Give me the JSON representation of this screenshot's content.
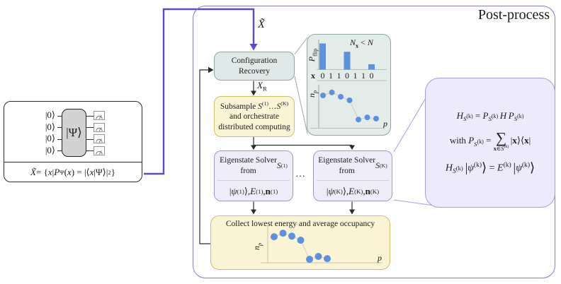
{
  "colors": {
    "accent_blue": "#5b91de",
    "box_teal": "#dfe9e7",
    "box_yellow": "#fbf4d4",
    "box_purple": "#efecfa",
    "outer_border_purple": "#8579d1",
    "connector_purple": "#5a4cc6",
    "scatter_line_gray": "#c9cfc9"
  },
  "post_process": {
    "title": "Post-process"
  },
  "circuit": {
    "qubit_label": "|0⟩",
    "gate_label": "|Ψ⟩",
    "formula_html": "<i>X̃</i> = {<i>x</i> | <i>P</i><sub>Ψ</sub>(<i>x</i>) = |⟨<i>x</i>|Ψ⟩|<sup>2</sup>}"
  },
  "flow": {
    "input_label_html": "<i>X̃</i>",
    "recovered_label_html": "<i>X</i><sub>R</sub>",
    "config_recovery_html": "Configuration<br>Recovery",
    "subsample_html": "Subsample <i>S</i><sup>(1)</sup>…<i>S</i><sup>(K)</sup><br>and orchestrate<br>distributed computing",
    "solver1_title_html": "Eigenstate Solver<br>from <i>S</i><sup>(1)</sup>",
    "solver1_output_html": "|<i>ψ</i><sup>(1)</sup>⟩, <i>E</i><sup>(1)</sup>, <b>n</b><sup>(1)</sup>",
    "solverK_title_html": "Eigenstate Solver<br>from <i>S</i><sup>(K)</sup>",
    "solverK_output_html": "|<i>ψ</i><sup>(K)</sup>⟩, <i>E</i><sup>(K)</sup>, <b>n</b><sup>(K)</sup>",
    "ellipsis": "…",
    "collect_title": "Collect lowest energy and average occupancy"
  },
  "bubble": {
    "eq1_html": "<i>H</i><sub><i>S</i><sup>(k)</sup></sub> = <i>P</i><sub><i>S</i><sup>(k)</sup></sub>&thinsp;<i>H</i>&thinsp;<i>P</i><sub><i>S</i><sup>(k)</sup></sub>",
    "eq2_html": "with <i>P</i><sub><i>S</i><sup>(k)</sup></sub> = <span class='bigsum'><span class='sym'>∑</span><span class='under'><b>x</b>∈<i>S</i><sup>(k)</sup></span></span>&thinsp;|<b>x</b>⟩⟨<b>x</b>|",
    "eq3_html": "<i>H</i><sub><i>S</i><sup>(k)</sup></sub>&thinsp;<span class='bigk'>|</span><i>ψ</i><sup>(k)</sup><span class='bigk'>⟩</span> = <i>E</i><sup>(k)</sup>&thinsp;<span class='bigk'>|</span><i>ψ</i><sup>(k)</sup><span class='bigk'>⟩</span>"
  },
  "inset": {
    "annotation_html": "<i>N</i><sub><b>x</b></sub> &lt; <i>N</i>"
  },
  "chart_data": [
    {
      "id": "flip-bars",
      "type": "bar",
      "title": "Bit-flip probability per measured bit",
      "xlabel": "x",
      "xlabel_html": "<b>x</b>",
      "ylabel": "P_flip",
      "ylabel_html": "<i>P</i><sub>flip</sub>",
      "annotation": "N_x < N",
      "categories": [
        "0",
        "1",
        "1",
        "0",
        "1",
        "1",
        "0"
      ],
      "values": [
        0.88,
        0,
        0,
        0.6,
        0,
        0,
        0.18
      ],
      "ylim": [
        0,
        1
      ]
    },
    {
      "id": "inset-occupancy",
      "type": "scatter",
      "title": "Average orbital occupancy",
      "xlabel": "p",
      "xlabel_html": "<i>p</i>",
      "ylabel": "n_p",
      "ylabel_html": "<i>n</i><sub><i>p</i></sub>",
      "x": [
        1,
        2,
        3,
        4,
        5,
        6,
        7
      ],
      "y": [
        0.74,
        0.81,
        0.71,
        0.63,
        0.19,
        0.24,
        0.21
      ]
    },
    {
      "id": "collect-occupancy",
      "type": "scatter",
      "title": "Collected average occupancy",
      "xlabel": "p",
      "xlabel_html": "<i>p</i>",
      "ylabel": "n_p",
      "ylabel_html": "<i>n</i><sub><i>p</i></sub>",
      "x": [
        1,
        2,
        3,
        4,
        5,
        6,
        7
      ],
      "y": [
        0.82,
        0.93,
        0.84,
        0.71,
        0.11,
        0.2,
        0.13
      ]
    }
  ]
}
